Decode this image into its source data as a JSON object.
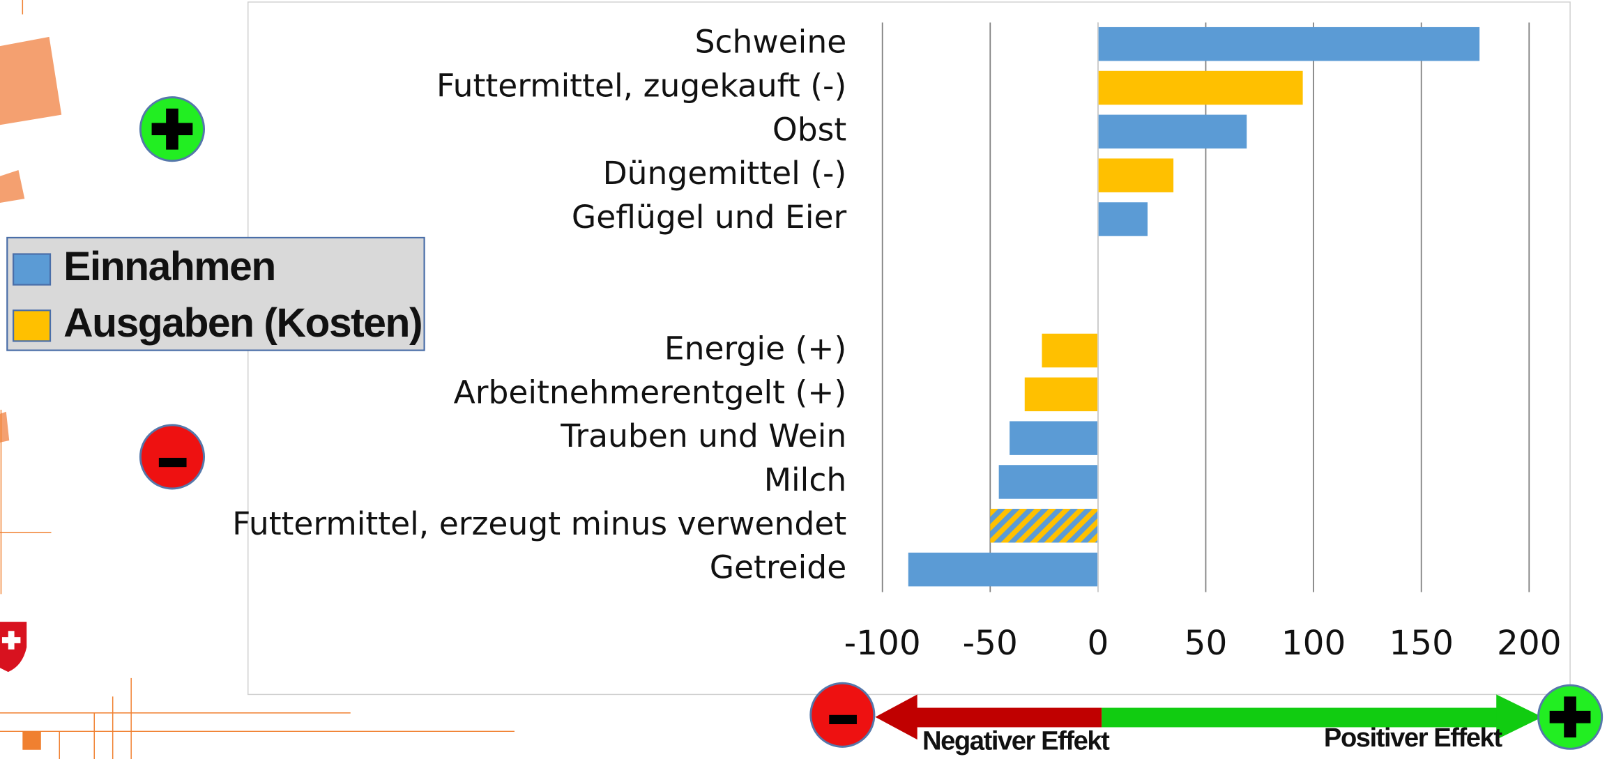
{
  "chart_data": {
    "type": "bar",
    "orientation": "horizontal",
    "categories": [
      "Schweine",
      "Futtermittel, zugekauft (-)",
      "Obst",
      "Düngemittel (-)",
      "Geflügel und Eier",
      null,
      null,
      "Energie (+)",
      "Arbeitnehmerentgelt (+)",
      "Trauben und Wein",
      "Milch",
      "Futtermittel, erzeugt minus verwendet",
      "Getreide"
    ],
    "series": [
      {
        "name": "Einnahmen",
        "color": "#5b9bd5",
        "values": [
          177,
          null,
          69,
          null,
          23,
          null,
          null,
          null,
          null,
          -41,
          -46,
          -50,
          -88
        ]
      },
      {
        "name": "Ausgaben (Kosten)",
        "color": "#ffc000",
        "values": [
          null,
          95,
          null,
          35,
          null,
          null,
          null,
          -26,
          -34,
          null,
          null,
          null,
          null
        ]
      }
    ],
    "hatched_categories": [
      11
    ],
    "xlim": [
      -100,
      200
    ],
    "xticks": [
      -100,
      -50,
      0,
      50,
      100,
      150,
      200
    ],
    "grid": true,
    "legend": "left",
    "annotations": {
      "negative": "Negativer Effekt",
      "positive": "Positiver Effekt"
    }
  }
}
